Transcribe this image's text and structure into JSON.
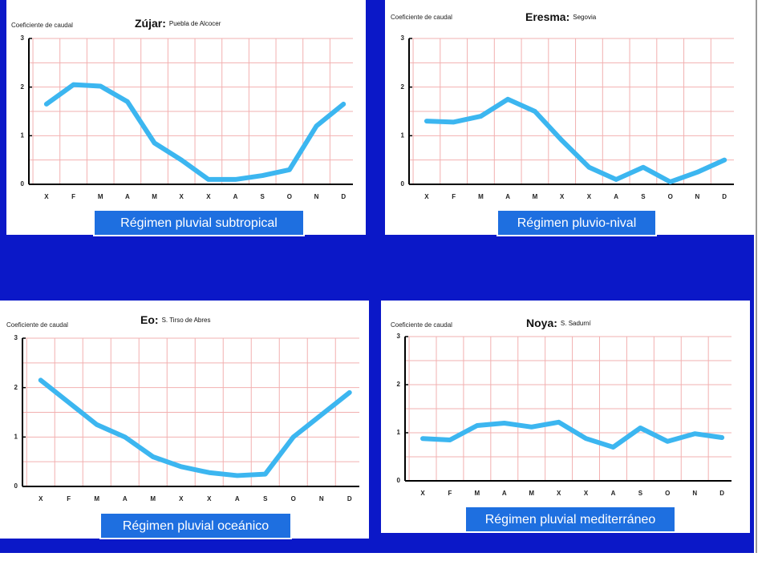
{
  "chart_data": [
    {
      "type": "line",
      "title": "Zújar:",
      "subtitle": "Puebla de Alcocer",
      "y_label": "Coeficiente de caudal",
      "caption": "Régimen pluvial subtropical",
      "categories": [
        "X",
        "F",
        "M",
        "A",
        "M",
        "X",
        "X",
        "A",
        "S",
        "O",
        "N",
        "D"
      ],
      "values": [
        1.65,
        2.05,
        2.02,
        1.7,
        0.85,
        0.5,
        0.1,
        0.1,
        0.18,
        0.3,
        1.2,
        1.65
      ],
      "color": "#3cb6f0",
      "ylim": [
        0,
        3
      ],
      "yticks": [
        0,
        1,
        2,
        3
      ],
      "grid": true
    },
    {
      "type": "line",
      "title": "Eresma:",
      "subtitle": "Segovia",
      "y_label": "Coeficiente de caudal",
      "caption": "Régimen pluvio-nival",
      "categories": [
        "X",
        "F",
        "M",
        "A",
        "M",
        "X",
        "X",
        "A",
        "S",
        "O",
        "N",
        "D"
      ],
      "values": [
        1.3,
        1.28,
        1.4,
        1.75,
        1.5,
        0.9,
        0.35,
        0.1,
        0.35,
        0.05,
        0.25,
        0.5
      ],
      "color": "#3cb6f0",
      "ylim": [
        0,
        3
      ],
      "yticks": [
        0,
        1,
        2,
        3
      ],
      "grid": true
    },
    {
      "type": "line",
      "title": "Eo:",
      "subtitle": "S. Tirso de Abres",
      "y_label": "Coeficiente de caudal",
      "caption": "Régimen pluvial oceánico",
      "categories": [
        "X",
        "F",
        "M",
        "A",
        "M",
        "X",
        "X",
        "A",
        "S",
        "O",
        "N",
        "D"
      ],
      "values": [
        2.15,
        1.7,
        1.25,
        1.0,
        0.6,
        0.4,
        0.28,
        0.22,
        0.25,
        1.0,
        1.45,
        1.9
      ],
      "color": "#3cb6f0",
      "ylim": [
        0,
        3
      ],
      "yticks": [
        0,
        1,
        2,
        3
      ],
      "grid": true
    },
    {
      "type": "line",
      "title": "Noya:",
      "subtitle": "S. Sadurní",
      "y_label": "Coeficiente de caudal",
      "caption": "Régimen pluvial mediterráneo",
      "categories": [
        "X",
        "F",
        "M",
        "A",
        "M",
        "X",
        "X",
        "A",
        "S",
        "O",
        "N",
        "D"
      ],
      "values": [
        0.88,
        0.85,
        1.15,
        1.2,
        1.12,
        1.22,
        0.88,
        0.7,
        1.1,
        0.82,
        0.98,
        0.9
      ],
      "color": "#3cb6f0",
      "ylim": [
        0,
        3
      ],
      "yticks": [
        0,
        1,
        2,
        3
      ],
      "grid": true
    }
  ]
}
